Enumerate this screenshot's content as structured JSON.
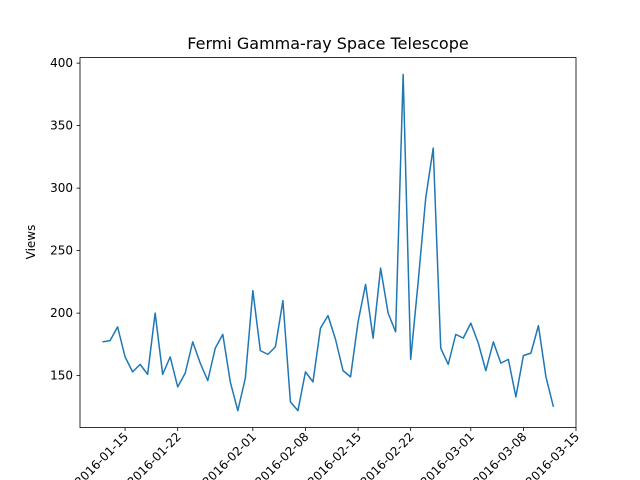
{
  "chart_data": {
    "type": "line",
    "title": "Fermi Gamma-ray Space Telescope",
    "ylabel": "Views",
    "x": [
      "2016-01-12",
      "2016-01-13",
      "2016-01-14",
      "2016-01-15",
      "2016-01-16",
      "2016-01-17",
      "2016-01-18",
      "2016-01-19",
      "2016-01-20",
      "2016-01-21",
      "2016-01-22",
      "2016-01-23",
      "2016-01-24",
      "2016-01-25",
      "2016-01-26",
      "2016-01-27",
      "2016-01-28",
      "2016-01-29",
      "2016-01-30",
      "2016-01-31",
      "2016-02-01",
      "2016-02-02",
      "2016-02-03",
      "2016-02-04",
      "2016-02-05",
      "2016-02-06",
      "2016-02-07",
      "2016-02-08",
      "2016-02-09",
      "2016-02-10",
      "2016-02-11",
      "2016-02-12",
      "2016-02-13",
      "2016-02-14",
      "2016-02-15",
      "2016-02-16",
      "2016-02-17",
      "2016-02-18",
      "2016-02-19",
      "2016-02-20",
      "2016-02-21",
      "2016-02-22",
      "2016-02-23",
      "2016-02-24",
      "2016-02-25",
      "2016-02-26",
      "2016-02-27",
      "2016-02-28",
      "2016-02-29",
      "2016-03-01",
      "2016-03-02",
      "2016-03-03",
      "2016-03-04",
      "2016-03-05",
      "2016-03-06",
      "2016-03-07",
      "2016-03-08",
      "2016-03-09",
      "2016-03-10",
      "2016-03-11",
      "2016-03-12"
    ],
    "series": [
      {
        "name": "Views",
        "color": "#1f77b4",
        "values": [
          177,
          178,
          189,
          165,
          153,
          159,
          151,
          200,
          151,
          165,
          141,
          152,
          177,
          160,
          146,
          172,
          183,
          145,
          122,
          148,
          218,
          170,
          167,
          173,
          210,
          129,
          122,
          153,
          145,
          188,
          198,
          179,
          154,
          149,
          193,
          223,
          180,
          236,
          200,
          185,
          391,
          163,
          225,
          292,
          332,
          172,
          159,
          183,
          180,
          192,
          176,
          154,
          177,
          160,
          163,
          133,
          166,
          168,
          190,
          149,
          125
        ]
      }
    ],
    "xlim": [
      "2016-01-09",
      "2016-03-15"
    ],
    "xticks": [
      "2016-01-15",
      "2016-01-22",
      "2016-02-01",
      "2016-02-08",
      "2016-02-15",
      "2016-02-22",
      "2016-03-01",
      "2016-03-08",
      "2016-03-15"
    ],
    "ylim": [
      108.5,
      404.5
    ],
    "yticks": [
      150,
      200,
      250,
      300,
      350,
      400
    ],
    "grid": false
  }
}
